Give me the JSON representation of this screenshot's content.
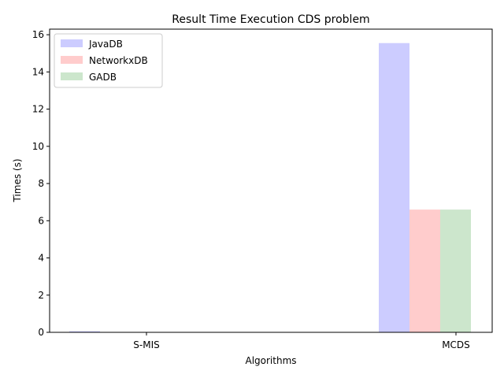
{
  "chart_data": {
    "type": "bar",
    "title": "Result Time Execution CDS problem",
    "xlabel": "Algorithms",
    "ylabel": "Times (s)",
    "categories": [
      "S-MIS",
      "MCDS"
    ],
    "series": [
      {
        "name": "JavaDB",
        "values": [
          0.06,
          15.55
        ],
        "color": "#ccccff"
      },
      {
        "name": "NetworkxDB",
        "values": [
          0.02,
          6.6
        ],
        "color": "#ffcccc"
      },
      {
        "name": "GADB",
        "values": [
          0.02,
          6.6
        ],
        "color": "#cce6cc"
      }
    ],
    "ylim": [
      0,
      16.3
    ],
    "yticks": [
      "0",
      "2",
      "4",
      "6",
      "8",
      "10",
      "12",
      "14",
      "16"
    ],
    "grid": false,
    "legend_position": "top-left"
  }
}
